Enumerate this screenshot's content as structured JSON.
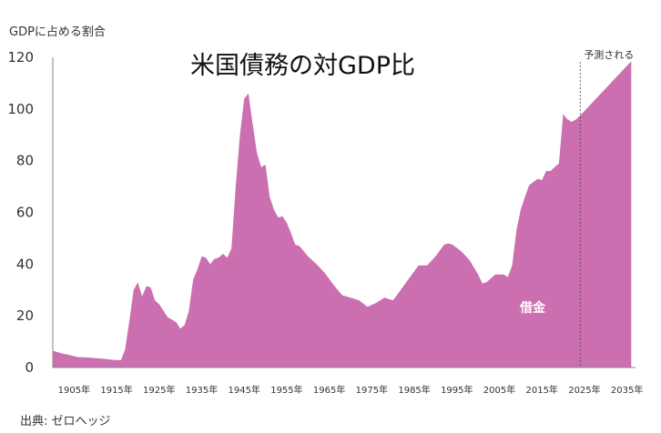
{
  "chart_data": {
    "type": "area",
    "title": "米国債務の対GDP比",
    "ylabel": "GDPに占める割合",
    "ylim": [
      0,
      120
    ],
    "yticks": [
      0,
      20,
      40,
      60,
      80,
      100,
      120
    ],
    "xlim": [
      1900,
      2037
    ],
    "xticks": [
      {
        "value": 1905,
        "label": "1905年"
      },
      {
        "value": 1915,
        "label": "1915年"
      },
      {
        "value": 1925,
        "label": "1925年"
      },
      {
        "value": 1935,
        "label": "1935年"
      },
      {
        "value": 1945,
        "label": "1945年"
      },
      {
        "value": 1955,
        "label": "1955年"
      },
      {
        "value": 1965,
        "label": "1965年"
      },
      {
        "value": 1975,
        "label": "1975年"
      },
      {
        "value": 1985,
        "label": "1985年"
      },
      {
        "value": 1995,
        "label": "1995年"
      },
      {
        "value": 2005,
        "label": "2005年"
      },
      {
        "value": 2015,
        "label": "2015年"
      },
      {
        "value": 2025,
        "label": "2025年"
      },
      {
        "value": 2035,
        "label": "2035年"
      }
    ],
    "grid": false,
    "color": "#cb6fb0",
    "series": [
      {
        "name": "借金",
        "x": [
          1900,
          1902,
          1904,
          1906,
          1908,
          1910,
          1912,
          1914,
          1916,
          1917,
          1918,
          1919,
          1920,
          1921,
          1922,
          1923,
          1924,
          1925,
          1926,
          1927,
          1928,
          1929,
          1930,
          1931,
          1932,
          1933,
          1934,
          1935,
          1936,
          1937,
          1938,
          1939,
          1940,
          1941,
          1942,
          1943,
          1944,
          1945,
          1946,
          1947,
          1948,
          1949,
          1950,
          1951,
          1952,
          1953,
          1954,
          1955,
          1956,
          1957,
          1958,
          1959,
          1960,
          1962,
          1964,
          1966,
          1968,
          1970,
          1972,
          1974,
          1976,
          1978,
          1980,
          1982,
          1984,
          1986,
          1988,
          1990,
          1992,
          1993,
          1994,
          1996,
          1998,
          2000,
          2001,
          2002,
          2004,
          2006,
          2007,
          2008,
          2009,
          2010,
          2011,
          2012,
          2014,
          2015,
          2016,
          2017,
          2018,
          2019,
          2020,
          2021,
          2022,
          2023,
          2024,
          2026,
          2028,
          2030,
          2032,
          2034,
          2036
        ],
        "values": [
          6.5,
          5.5,
          4.8,
          4.0,
          3.9,
          3.6,
          3.4,
          3.0,
          2.8,
          7.0,
          18.0,
          30.0,
          33.0,
          27.5,
          31.5,
          31.0,
          26.0,
          24.5,
          22.0,
          19.5,
          18.5,
          17.5,
          15.0,
          16.5,
          22.0,
          34.0,
          38.0,
          43.0,
          42.5,
          40.0,
          42.0,
          42.5,
          44.0,
          42.5,
          46.0,
          70.0,
          90.0,
          104.0,
          106.0,
          94.0,
          83.0,
          77.5,
          78.5,
          66.0,
          61.0,
          58.0,
          58.5,
          56.0,
          52.0,
          47.5,
          47.0,
          45.0,
          43.0,
          40.0,
          36.5,
          32.0,
          28.0,
          27.0,
          26.0,
          23.5,
          25.0,
          27.0,
          26.0,
          30.5,
          35.0,
          39.5,
          39.5,
          43.0,
          47.5,
          48.0,
          47.5,
          45.0,
          41.5,
          36.0,
          32.5,
          33.0,
          36.0,
          36.0,
          35.0,
          39.5,
          53.0,
          61.0,
          66.0,
          70.5,
          73.0,
          72.5,
          76.0,
          76.0,
          77.5,
          79.0,
          98.0,
          96.0,
          95.0,
          96.0,
          97.5,
          101.0,
          104.5,
          108.0,
          111.5,
          115.0,
          118.5
        ]
      }
    ],
    "annotations": {
      "series_label": "借金",
      "forecast_label": "予測される",
      "forecast_start": 2024,
      "source": "出典: ゼロヘッジ"
    }
  }
}
